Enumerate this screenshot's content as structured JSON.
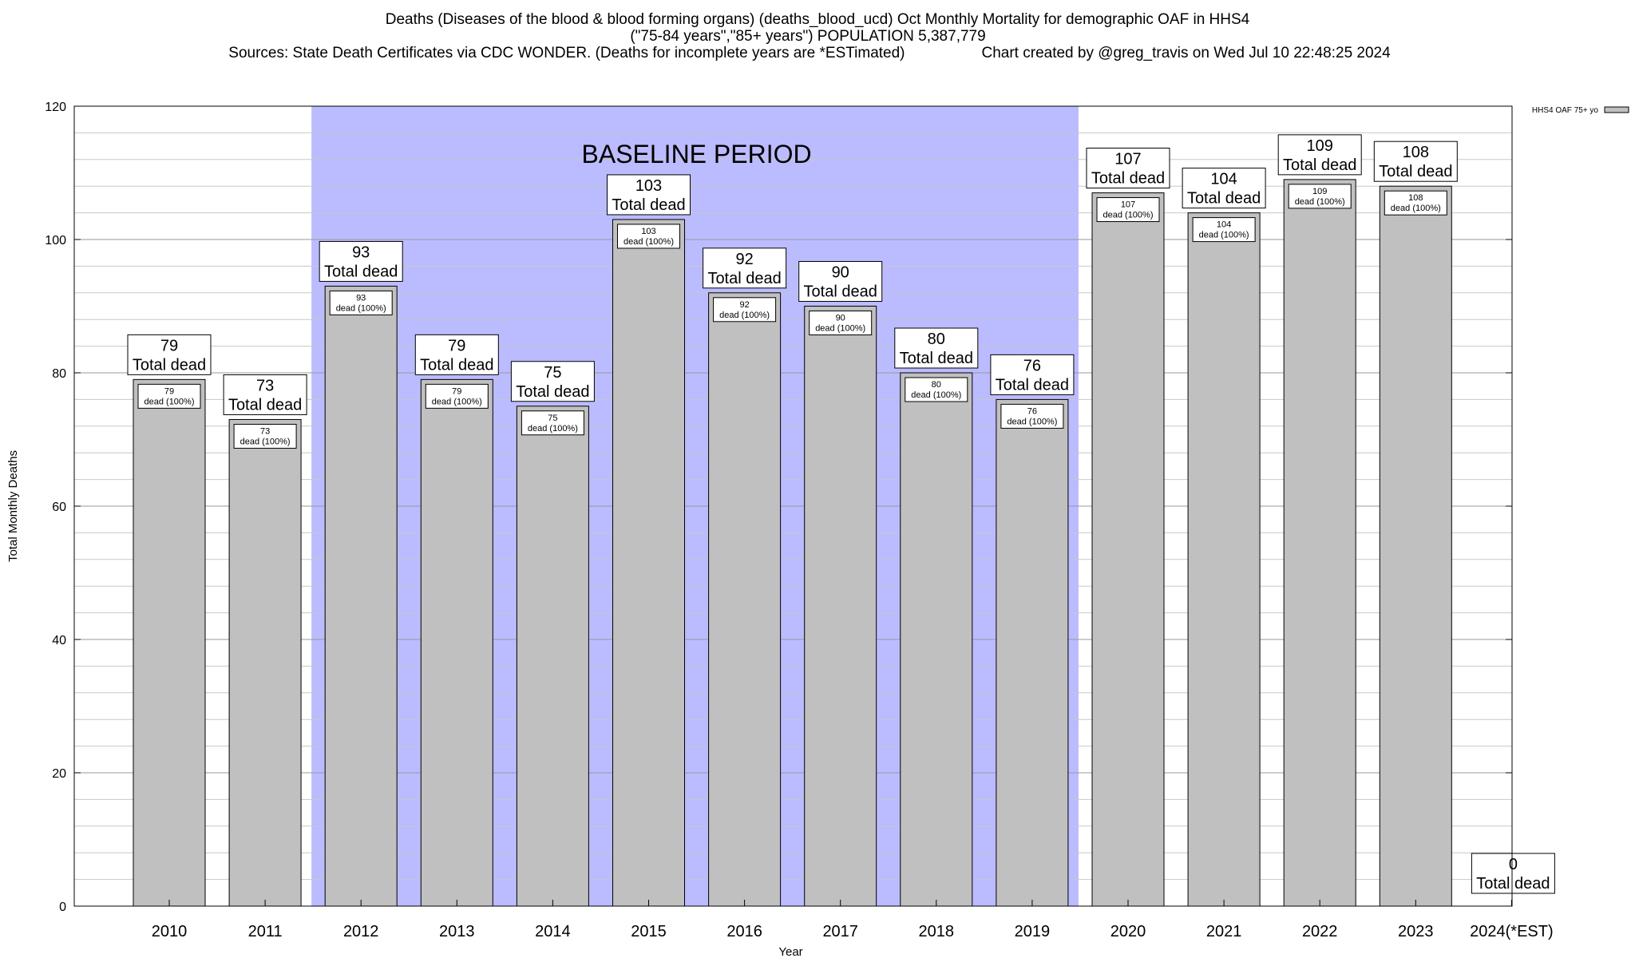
{
  "header": {
    "title_line1": "Deaths (Diseases of the blood & blood forming organs) (deaths_blood_ucd) Oct Monthly Mortality for demographic OAF in HHS4",
    "title_line2": "(\"75-84 years\",\"85+ years\") POPULATION 5,387,779",
    "sources": "Sources: State Death Certificates via CDC WONDER. (Deaths for incomplete years are *ESTimated)",
    "credit": "Chart created by @greg_travis on Wed Jul 10 22:48:25 2024"
  },
  "chart_data": {
    "type": "bar",
    "categories": [
      "2010",
      "2011",
      "2012",
      "2013",
      "2014",
      "2015",
      "2016",
      "2017",
      "2018",
      "2019",
      "2020",
      "2021",
      "2022",
      "2023",
      "2024(*EST)"
    ],
    "series": [
      {
        "name": "HHS4 OAF 75+ yo",
        "values": [
          79,
          73,
          93,
          79,
          75,
          103,
          92,
          90,
          80,
          76,
          107,
          104,
          109,
          108,
          0
        ]
      }
    ],
    "bar_label_line2": "Total dead",
    "inner_label_suffix": "dead (100%)",
    "xlabel": "Year",
    "ylabel": "Total Monthly Deaths",
    "ylim": [
      0,
      120
    ],
    "yticks": [
      0,
      20,
      40,
      60,
      80,
      100,
      120
    ],
    "minor_grid_step": 4,
    "baseline": {
      "label": "BASELINE PERIOD",
      "from": "2012",
      "to": "2019",
      "color": "#bbbbff"
    },
    "bar_color": "#c0c0c0",
    "grid": true,
    "legend_position": "top-right"
  }
}
